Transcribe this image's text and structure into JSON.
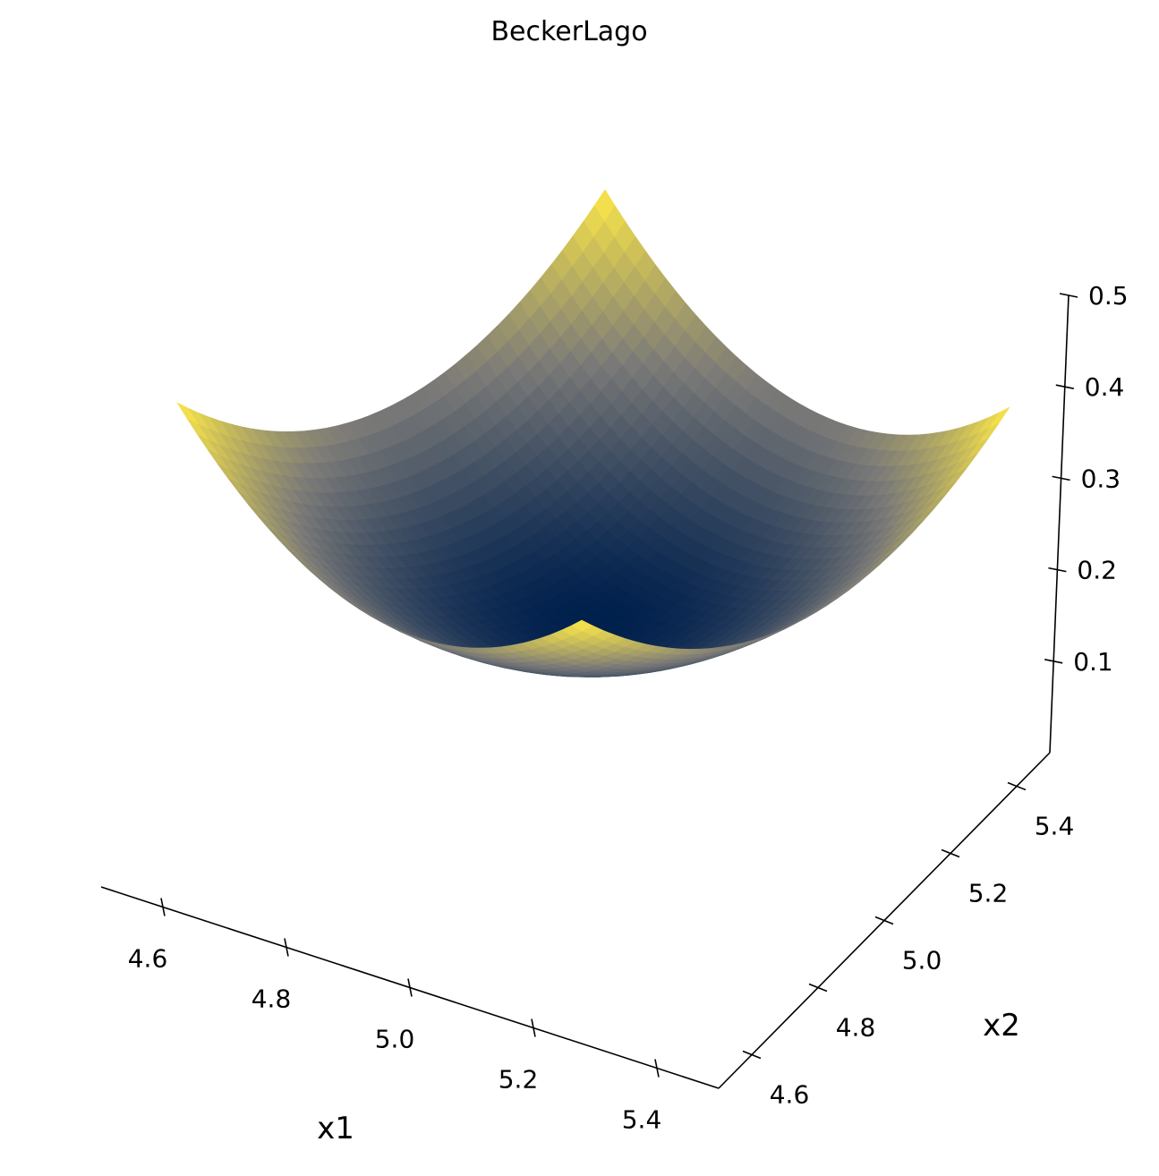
{
  "chart_data": {
    "type": "surface3d",
    "title": "BeckerLago",
    "xlabel": "x1",
    "ylabel": "x2",
    "zlabel": "",
    "function": "(|x1| - 5)^2 + (|x2| - 5)^2",
    "xlim": [
      4.5,
      5.5
    ],
    "ylim": [
      4.5,
      5.5
    ],
    "zlim": [
      0.0,
      0.5
    ],
    "x_ticks": [
      4.6,
      4.8,
      5.0,
      5.2,
      5.4
    ],
    "y_ticks": [
      4.6,
      4.8,
      5.0,
      5.2,
      5.4
    ],
    "z_ticks": [
      0.1,
      0.2,
      0.3,
      0.4,
      0.5
    ],
    "x_tick_labels": [
      "4.6",
      "4.8",
      "5.0",
      "5.2",
      "5.4"
    ],
    "y_tick_labels": [
      "4.6",
      "4.8",
      "5.0",
      "5.2",
      "5.4"
    ],
    "z_tick_labels": [
      "0.1",
      "0.2",
      "0.3",
      "0.4",
      "0.5"
    ],
    "grid_resolution": 40,
    "minimum": {
      "x1": 5.0,
      "x2": 5.0,
      "z": 0.0
    },
    "colormap": [
      "#00204d",
      "#7c7b78",
      "#ffea46"
    ]
  }
}
